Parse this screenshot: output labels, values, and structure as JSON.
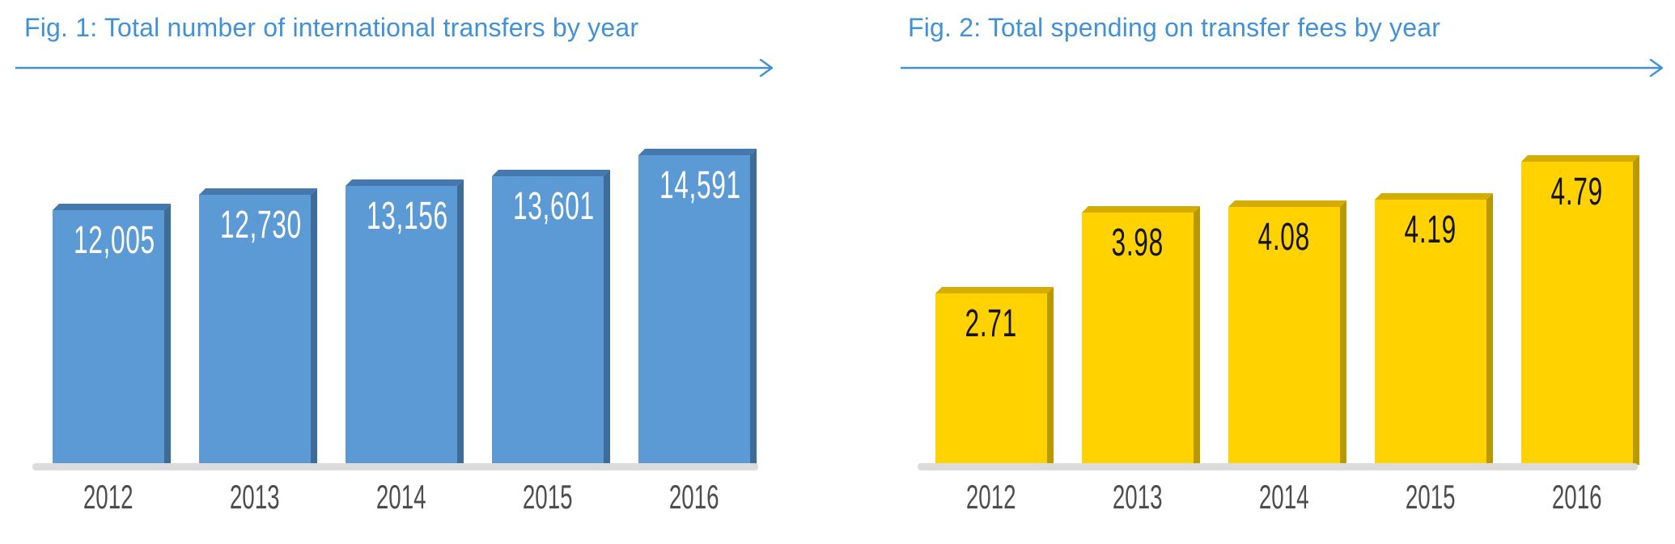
{
  "page": {
    "background": "#FFFFFF",
    "accent_color": "#4191D9"
  },
  "chart_data": [
    {
      "type": "bar",
      "title": "Fig. 1: Total number of international transfers by year",
      "categories": [
        "2012",
        "2013",
        "2014",
        "2015",
        "2016"
      ],
      "values": [
        12005,
        12730,
        13156,
        13601,
        14591
      ],
      "value_labels": [
        "12,005",
        "12,730",
        "13,156",
        "13,601",
        "14,591"
      ],
      "xlabel": "",
      "ylabel": "",
      "ylim": [
        0,
        14591
      ],
      "grid": false,
      "legend": "none",
      "bar_style": "3d-extruded-flat",
      "title_color": "#4191D9",
      "colors": {
        "front": "#5B9AD5",
        "top": "#4579AD",
        "side": "#3E6C99",
        "value_text": "#FFFFFF",
        "axis_strip": "#DCDCDC",
        "category_text": "#4D4D4D"
      }
    },
    {
      "type": "bar",
      "title": "Fig. 2: Total spending on transfer fees by year",
      "categories": [
        "2012",
        "2013",
        "2014",
        "2015",
        "2016"
      ],
      "values": [
        2.71,
        3.98,
        4.08,
        4.19,
        4.79
      ],
      "value_labels": [
        "2.71",
        "3.98",
        "4.08",
        "4.19",
        "4.79"
      ],
      "xlabel": "",
      "ylabel": "",
      "ylim": [
        0,
        4.79
      ],
      "grid": false,
      "legend": "none",
      "bar_style": "3d-extruded-flat",
      "title_color": "#4191D9",
      "colors": {
        "front": "#FFD200",
        "top": "#D5AC00",
        "side": "#BA9800",
        "value_text": "#141414",
        "axis_strip": "#DCDCDC",
        "category_text": "#4D4D4D"
      }
    }
  ]
}
